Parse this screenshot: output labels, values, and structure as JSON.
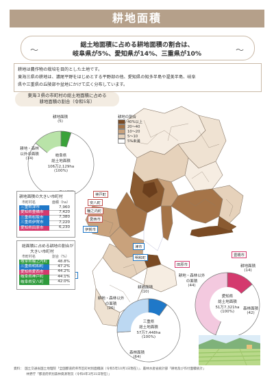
{
  "header": {
    "title": "耕地面積"
  },
  "ribbon": {
    "line1": "総土地面積に占める耕地面積の割合は、",
    "line2": "岐阜県が5%、愛知県が14%、三重県が10%",
    "tilde_left": "～",
    "tilde_right": "～"
  },
  "intro": {
    "line1": "耕地は農作物の栽培を目的とした土地です。",
    "line2": "東海三県の耕地は、濃尾平野をはじめとする平野部の他、愛知県の知多半島や渥美半島、岐阜",
    "line3": "県や三重県の丘陵部や盆地にかけて広く分布しています。"
  },
  "map": {
    "caption_line1": "東海３県の市町村の総土地面積に占める",
    "caption_line2": "耕地面積の割合（令和5年）",
    "legend": {
      "title": "耕地の割合",
      "items": [
        {
          "label": "40%以上",
          "color": "#7a4a23"
        },
        {
          "label": "20～40",
          "color": "#a57448"
        },
        {
          "label": "10～20",
          "color": "#c9a27c"
        },
        {
          "label": "5～10",
          "color": "#e6d2bb"
        },
        {
          "label": "5%未満",
          "color": "#ffffff"
        }
      ]
    },
    "cities": {
      "kobe": "神戸町",
      "anpachi": "安八町",
      "wanouchi": "輪之内町",
      "aisai": "愛西市",
      "iga": "伊賀市",
      "tsu": "津市",
      "meiwa": "明和町",
      "tahara": "田原市",
      "toyohashi": "豊橋市",
      "matsusaka": "松阪市"
    }
  },
  "rank_area": {
    "title": "耕地面積の大きい市町村",
    "col_name": "市町村名",
    "col_value": "面積（ha）",
    "rows": [
      {
        "name": "三重県津市",
        "value": "7,960",
        "color": "#1f78c8"
      },
      {
        "name": "愛知県豊橋市",
        "value": "7,420",
        "color": "#d43a6e"
      },
      {
        "name": "三重県松阪市",
        "value": "7,380",
        "color": "#1f78c8"
      },
      {
        "name": "三重県伊賀市",
        "value": "7,220",
        "color": "#1f78c8"
      },
      {
        "name": "愛知県田原市",
        "value": "6,230",
        "color": "#d43a6e"
      }
    ]
  },
  "rank_ratio": {
    "title_line1": "総面積に占める耕地の割合が",
    "title_line2": "大きい市町村",
    "col_name": "市町村名",
    "col_value": "割合（%）",
    "rows": [
      {
        "name": "岐阜県輪之内町",
        "value": "48.8%",
        "color": "#2e9a3c"
      },
      {
        "name": "三重県明和町",
        "value": "47.2%",
        "color": "#1f78c8"
      },
      {
        "name": "愛知県愛西市",
        "value": "44.2%",
        "color": "#d43a6e"
      },
      {
        "name": "岐阜県神戸町",
        "value": "44.1%",
        "color": "#2e9a3c"
      },
      {
        "name": "岐阜県安八町",
        "value": "42.0%",
        "color": "#2e9a3c"
      }
    ]
  },
  "gifu_pie": {
    "farm_label": "耕地面積",
    "farm_value": "(5)",
    "other_label1": "耕地・森林",
    "other_label2": "以外の面積",
    "other_value": "(14)",
    "center1": "岐阜県",
    "center2": "総土地面積",
    "center3": "106万2,129ha",
    "center4": "(100%)",
    "forest_label": "森林面積",
    "forest_value": "(81)",
    "color_farm": "#3aa23a",
    "color_other": "#b9e3a8",
    "color_forest": "#ffffff"
  },
  "aichi_pie": {
    "farm_label": "耕地面積",
    "farm_value": "(14)",
    "other_label1": "耕地・森林以外",
    "other_label2": "の面積",
    "other_value": "(44)",
    "center1": "愛知県",
    "center2": "総土地面積",
    "center3": "51万7,321ha",
    "center4": "(100%)",
    "forest_label": "森林面積",
    "forest_value": "(42)",
    "color_farm": "#d43a6e",
    "color_other": "#f3c9df",
    "color_forest": "#ffffff"
  },
  "mie_pie": {
    "farm_label": "耕地面積",
    "farm_value": "(10)",
    "other_label1": "耕地・森林以外",
    "other_label2": "の面積",
    "other_value": "(26)",
    "center1": "三重県",
    "center2": "総土地面積",
    "center3": "57万7,448ha",
    "center4": "(100%)",
    "forest_label": "森林面積",
    "forest_value": "(64)",
    "color_farm": "#1f78c8",
    "color_other": "#bcd8f2",
    "color_forest": "#ffffff"
  },
  "footnote": {
    "line1": "資料：　国土交通省国土地理院「全国都道府県市区町村別面積調（令和5年10月1日現在）」、農林水産省統計部「耕地及び作付面積統計」",
    "line2": "　　　　林野庁「都道府県別森林資源現況（令和4年3月31日現在）」"
  }
}
